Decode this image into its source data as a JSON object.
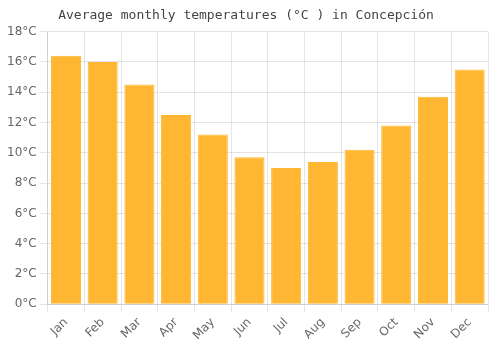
{
  "chart_data": {
    "type": "bar",
    "title": "Average monthly temperatures (°C ) in Concepción",
    "categories": [
      "Jan",
      "Feb",
      "Mar",
      "Apr",
      "May",
      "Jun",
      "Jul",
      "Aug",
      "Sep",
      "Oct",
      "Nov",
      "Dec"
    ],
    "values": [
      16.4,
      16.0,
      14.5,
      12.5,
      11.2,
      9.7,
      9.0,
      9.4,
      10.2,
      11.8,
      13.7,
      15.5
    ],
    "color": "#FFB733",
    "ylim": [
      0,
      18
    ],
    "yticks": [
      {
        "value": 0,
        "label": "0°C"
      },
      {
        "value": 2,
        "label": "2°C"
      },
      {
        "value": 4,
        "label": "4°C"
      },
      {
        "value": 6,
        "label": "6°C"
      },
      {
        "value": 8,
        "label": "8°C"
      },
      {
        "value": 10,
        "label": "10°C"
      },
      {
        "value": 12,
        "label": "12°C"
      },
      {
        "value": 14,
        "label": "14°C"
      },
      {
        "value": 16,
        "label": "16°C"
      },
      {
        "value": 18,
        "label": "18°C"
      }
    ],
    "grid": true
  }
}
